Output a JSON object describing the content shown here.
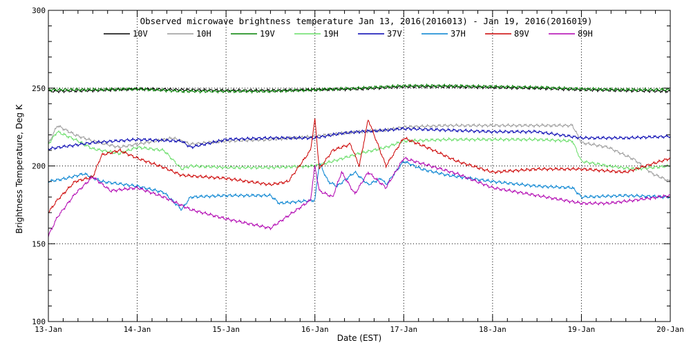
{
  "chart_data": {
    "type": "line",
    "title": "Observed microwave brightness temperature Jan 13, 2016(2016013) - Jan 19, 2016(2016019)",
    "xlabel": "Date (EST)",
    "ylabel": "Brightness Temperature, Deg K",
    "xlim": [
      0,
      7
    ],
    "ylim": [
      100,
      300
    ],
    "x_ticks": [
      {
        "x": 0,
        "label": "13-Jan"
      },
      {
        "x": 1,
        "label": "14-Jan"
      },
      {
        "x": 2,
        "label": "15-Jan"
      },
      {
        "x": 3,
        "label": "16-Jan"
      },
      {
        "x": 4,
        "label": "17-Jan"
      },
      {
        "x": 5,
        "label": "18-Jan"
      },
      {
        "x": 6,
        "label": "19-Jan"
      },
      {
        "x": 7,
        "label": "20-Jan"
      }
    ],
    "y_ticks": [
      {
        "y": 100,
        "label": "100"
      },
      {
        "y": 150,
        "label": "150"
      },
      {
        "y": 200,
        "label": "200"
      },
      {
        "y": 250,
        "label": "250"
      },
      {
        "y": 300,
        "label": "300"
      }
    ],
    "grid": true,
    "legend_position": "top",
    "series": [
      {
        "name": "10V",
        "color": "#000000",
        "x": [
          0,
          0.5,
          1,
          1.5,
          2,
          2.5,
          3,
          3.5,
          4,
          4.5,
          5,
          5.5,
          6,
          6.5,
          7
        ],
        "values": [
          248,
          248.5,
          249.5,
          249,
          248.5,
          248.5,
          249,
          249.5,
          251,
          251,
          250.5,
          250,
          249,
          248.5,
          248
        ]
      },
      {
        "name": "10H",
        "color": "#999999",
        "x": [
          0,
          0.1,
          0.3,
          0.5,
          0.8,
          1,
          1.4,
          1.6,
          2,
          2.5,
          3,
          3.3,
          3.5,
          3.8,
          4,
          4.5,
          5,
          5.5,
          5.9,
          6,
          6.3,
          6.6,
          6.8,
          7
        ],
        "values": [
          214,
          226,
          220,
          216,
          212,
          214,
          218,
          214,
          216,
          217,
          219,
          221,
          222,
          223,
          225,
          226,
          226,
          226,
          226,
          215,
          212,
          204,
          195,
          190
        ]
      },
      {
        "name": "19V",
        "color": "#008000",
        "x": [
          0,
          0.5,
          1,
          1.5,
          2,
          2.5,
          3,
          3.5,
          4,
          4.5,
          5,
          5.5,
          6,
          6.5,
          7
        ],
        "values": [
          249,
          249,
          249.5,
          248,
          248,
          248,
          249,
          250,
          251.5,
          251.5,
          251,
          250.5,
          249.5,
          249,
          249
        ]
      },
      {
        "name": "19H",
        "color": "#66dd66",
        "x": [
          0,
          0.1,
          0.3,
          0.5,
          0.8,
          1,
          1.3,
          1.5,
          1.6,
          2,
          2.5,
          3,
          3.2,
          3.5,
          3.8,
          4,
          4.5,
          5,
          5.5,
          5.9,
          6,
          6.3,
          6.6,
          6.8,
          7
        ],
        "values": [
          214,
          222,
          217,
          211,
          208,
          212,
          210,
          198,
          200,
          199,
          199,
          200,
          203,
          208,
          212,
          216,
          217,
          217,
          217,
          216,
          203,
          200,
          198,
          199,
          200
        ]
      },
      {
        "name": "37V",
        "color": "#0000b0",
        "x": [
          0,
          0.5,
          1,
          1.5,
          1.6,
          2,
          2.5,
          3,
          3.3,
          3.5,
          3.8,
          4,
          4.5,
          5,
          5.5,
          6,
          6.5,
          7
        ],
        "values": [
          211,
          215,
          217,
          216,
          212,
          217,
          218,
          218,
          221,
          222,
          223,
          224,
          223,
          222,
          222,
          218,
          218,
          219
        ]
      },
      {
        "name": "37H",
        "color": "#0080d0",
        "x": [
          0,
          0.2,
          0.4,
          0.6,
          1,
          1.3,
          1.5,
          1.6,
          2,
          2.5,
          2.6,
          3,
          3.05,
          3.15,
          3.25,
          3.45,
          3.6,
          3.75,
          3.8,
          4,
          4.2,
          4.5,
          5,
          5.5,
          5.9,
          6,
          6.5,
          7
        ],
        "values": [
          190,
          192,
          195,
          190,
          187,
          183,
          172,
          180,
          181,
          181,
          176,
          178,
          202,
          190,
          187,
          196,
          188,
          192,
          188,
          203,
          198,
          194,
          190,
          187,
          186,
          180,
          181,
          180
        ]
      },
      {
        "name": "89V",
        "color": "#cc0000",
        "x": [
          0,
          0.1,
          0.3,
          0.5,
          0.6,
          0.8,
          1,
          1.3,
          1.5,
          2,
          2.5,
          2.7,
          2.95,
          3.0,
          3.05,
          3.2,
          3.4,
          3.5,
          3.6,
          3.8,
          4,
          4.3,
          4.6,
          5,
          5.5,
          6,
          6.5,
          7
        ],
        "values": [
          170,
          178,
          190,
          193,
          207,
          210,
          205,
          199,
          194,
          192,
          188,
          190,
          210,
          230,
          198,
          210,
          214,
          200,
          230,
          200,
          218,
          211,
          203,
          196,
          198,
          198,
          196,
          205
        ]
      },
      {
        "name": "89H",
        "color": "#b000b0",
        "x": [
          0,
          0.1,
          0.3,
          0.5,
          0.7,
          1,
          1.3,
          1.6,
          2,
          2.5,
          2.7,
          2.95,
          3.0,
          3.05,
          3.2,
          3.3,
          3.45,
          3.6,
          3.8,
          4,
          4.3,
          4.6,
          5,
          5.5,
          6,
          6.3,
          6.6,
          7
        ],
        "values": [
          155,
          167,
          182,
          193,
          184,
          186,
          180,
          172,
          166,
          160,
          168,
          178,
          200,
          184,
          180,
          196,
          182,
          196,
          186,
          205,
          200,
          195,
          186,
          181,
          176,
          176,
          178,
          181
        ]
      }
    ]
  }
}
